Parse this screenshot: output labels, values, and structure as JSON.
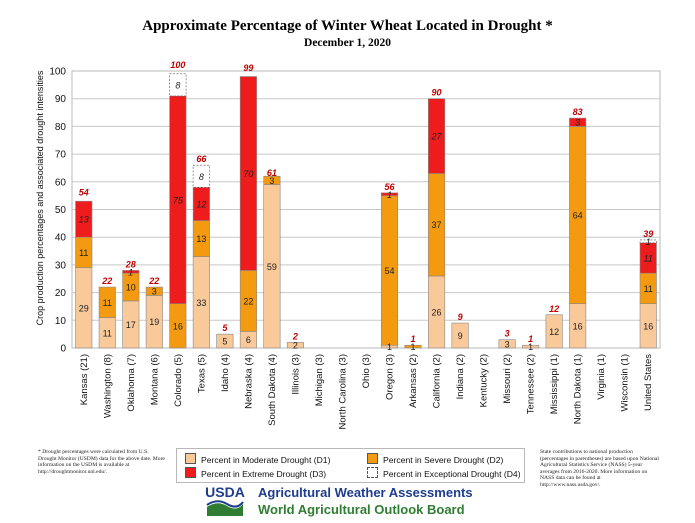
{
  "title": "Approximate Percentage of Winter Wheat Located in Drought *",
  "subtitle": "December 1, 2020",
  "chart_data": {
    "type": "bar",
    "stacked": true,
    "categories": [
      "Kansas (21)",
      "Washington (8)",
      "Oklahoma (7)",
      "Montana (6)",
      "Colorado (5)",
      "Texas (5)",
      "Idaho (4)",
      "Nebraska (4)",
      "South Dakota (4)",
      "Illinois (3)",
      "Michigan (3)",
      "North Carolina (3)",
      "Ohio (3)",
      "Oregon (3)",
      "Arkansas (2)",
      "California (2)",
      "Indiana (2)",
      "Kentucky (2)",
      "Missouri (2)",
      "Tennessee (2)",
      "Mississippi (1)",
      "North Dakota (1)",
      "Virginia (1)",
      "Wisconsin (1)",
      "United States"
    ],
    "series": [
      {
        "name": "Percent in Moderate Drought (D1)",
        "color": "#F9C99A",
        "values": [
          29,
          11,
          17,
          19,
          0,
          33,
          5,
          6,
          59,
          2,
          0,
          0,
          0,
          1,
          0,
          26,
          9,
          0,
          3,
          1,
          12,
          16,
          0,
          0,
          16
        ]
      },
      {
        "name": "Percent in Severe Drought (D2)",
        "color": "#F39A10",
        "values": [
          11,
          11,
          10,
          3,
          16,
          13,
          0,
          22,
          3,
          0,
          0,
          0,
          0,
          54,
          1,
          37,
          0,
          0,
          0,
          0,
          0,
          64,
          0,
          0,
          11
        ]
      },
      {
        "name": "Percent in Extreme Drought (D3)",
        "color": "#EE1C1C",
        "values": [
          13,
          0,
          1,
          0,
          75,
          12,
          0,
          70,
          0,
          0,
          0,
          0,
          0,
          1,
          0,
          27,
          0,
          0,
          0,
          0,
          0,
          3,
          0,
          0,
          11
        ]
      },
      {
        "name": "Percent in Exceptional Drought (D4)",
        "color": "#FFFFFF",
        "values": [
          0,
          0,
          0,
          0,
          8,
          8,
          0,
          0,
          0,
          0,
          0,
          0,
          0,
          0,
          0,
          0,
          0,
          0,
          0,
          0,
          0,
          0,
          0,
          0,
          1
        ]
      }
    ],
    "totals": [
      54,
      22,
      28,
      22,
      100,
      66,
      5,
      99,
      61,
      2,
      0,
      0,
      0,
      56,
      1,
      90,
      9,
      0,
      3,
      1,
      12,
      83,
      0,
      0,
      39
    ],
    "segment_labels": [
      [
        "29",
        "11",
        "13",
        ""
      ],
      [
        "11",
        "11",
        "",
        ""
      ],
      [
        "17",
        "10",
        "1",
        ""
      ],
      [
        "19",
        "3",
        "",
        ""
      ],
      [
        "",
        "16",
        "75",
        "8"
      ],
      [
        "33",
        "13",
        "12",
        "8"
      ],
      [
        "5",
        "",
        "",
        ""
      ],
      [
        "6",
        "22",
        "70",
        ""
      ],
      [
        "59",
        "3",
        "",
        ""
      ],
      [
        "2",
        "",
        "",
        ""
      ],
      [
        "",
        "",
        "",
        ""
      ],
      [
        "",
        "",
        "",
        ""
      ],
      [
        "",
        "",
        "",
        ""
      ],
      [
        "1",
        "54",
        "1",
        ""
      ],
      [
        "",
        "1",
        "",
        ""
      ],
      [
        "26",
        "37",
        "27",
        ""
      ],
      [
        "9",
        "",
        "",
        ""
      ],
      [
        "",
        "",
        "",
        ""
      ],
      [
        "3",
        "",
        "",
        ""
      ],
      [
        "1",
        "",
        "",
        ""
      ],
      [
        "12",
        "",
        "",
        ""
      ],
      [
        "16",
        "64",
        "3",
        ""
      ],
      [
        "",
        "",
        "",
        ""
      ],
      [
        "",
        "",
        "",
        ""
      ],
      [
        "16",
        "11",
        "11",
        "1"
      ]
    ],
    "ylabel": "Crop production percentages and associated drought intensities",
    "xlabel": "",
    "ylim": [
      0,
      100
    ],
    "yticks": [
      0,
      10,
      20,
      30,
      40,
      50,
      60,
      70,
      80,
      90,
      100
    ],
    "grid": true,
    "legend_placement": "bottom"
  },
  "legend": {
    "moderate": "Percent in Moderate Drought (D1)",
    "severe": "Percent in Severe Drought (D2)",
    "extreme": "Percent in Extreme Drought (D3)",
    "exceptional": "Percent in Exceptional Drought (D4)"
  },
  "footnote_left": "* Drought percentages were calculated from U.S. Drought Monitor (USDM) data for the above date. More information on the USDM is available at http://droughtmonitor.unl.edu/.",
  "footnote_right": "State contributions to national production (percentages in parentheses) are based upon National Agricultural Statistics Service (NASS) 5-year averages from 2016-2020. More information on NASS data can be found at http://www.nass.usda.gov/.",
  "brand": {
    "logo_text": "USDA",
    "line1": "Agricultural Weather Assessments",
    "line2": "World Agricultural Outlook Board",
    "line1_color": "#1F3C8E",
    "line2_color": "#2E7D32"
  }
}
